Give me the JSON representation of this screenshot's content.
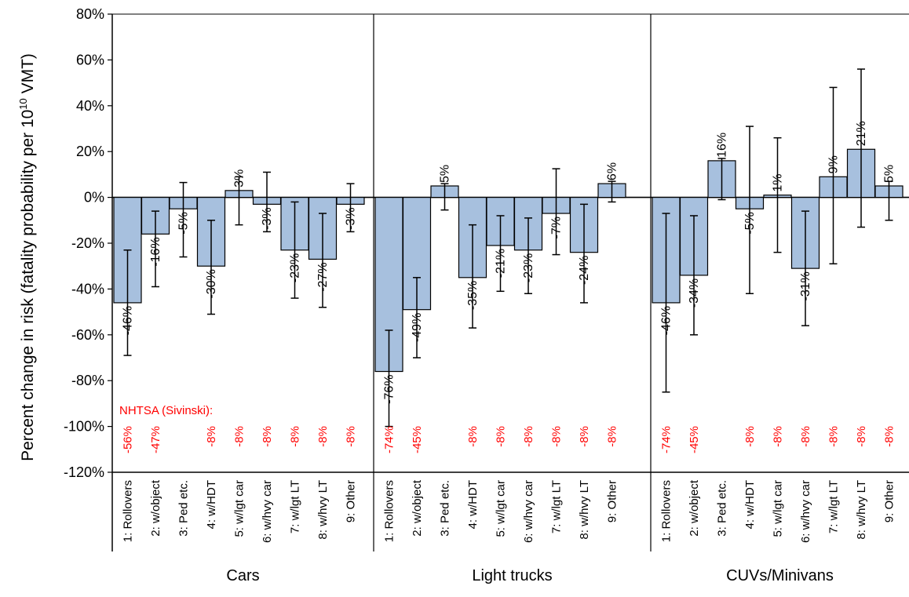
{
  "chart_data": {
    "type": "bar",
    "ylabel": "Percent change in risk (fatality probability per 10",
    "ylabel_sup": "10",
    "ylabel_tail": " VMT)",
    "ylim": [
      -120,
      80
    ],
    "yticks": [
      80,
      60,
      40,
      20,
      0,
      -20,
      -40,
      -60,
      -80,
      -100,
      -120
    ],
    "ytick_labels": [
      "80%",
      "60%",
      "40%",
      "20%",
      "0%",
      "-20%",
      "-40%",
      "-60%",
      "-80%",
      "-100%",
      "-120%"
    ],
    "categories": [
      "1: Rollovers",
      "2: w/object",
      "3: Ped etc.",
      "4: w/HDT",
      "5: w/lgt car",
      "6: w/hvy car",
      "7: w/lgt LT",
      "8: w/hvy LT",
      "9: Other"
    ],
    "bar_color": "#a7c0de",
    "nhtsa_label": "NHTSA (Sivinski):",
    "nhtsa_color": "#ff0000",
    "groups": [
      {
        "name": "Cars",
        "values": [
          -46,
          -16,
          -5,
          -30,
          3,
          -3,
          -23,
          -27,
          -3
        ],
        "value_labels": [
          "-46%",
          "-16%",
          "-5%",
          "-30%",
          "3%",
          "-3%",
          "-23%",
          "-27%",
          "-3%"
        ],
        "err_low": [
          -69,
          -39,
          -26,
          -51,
          -12,
          -15,
          -44,
          -48,
          -15
        ],
        "err_high": [
          -23,
          -6,
          6.5,
          -10,
          9,
          11,
          -2,
          -7,
          6
        ],
        "nhtsa": [
          "-56%",
          "-47%",
          "",
          "-8%",
          "-8%",
          "-8%",
          "-8%",
          "-8%",
          "-8%"
        ]
      },
      {
        "name": "Light trucks",
        "values": [
          -76,
          -49,
          5,
          -35,
          -21,
          -23,
          -7,
          -24,
          6
        ],
        "value_labels": [
          "-76%",
          "-49%",
          "5%",
          "-35%",
          "-21%",
          "-23%",
          "-7%",
          "-24%",
          "6%"
        ],
        "err_low": [
          -100,
          -70,
          -5.5,
          -57,
          -41,
          -42,
          -25,
          -46,
          -2
        ],
        "err_high": [
          -58,
          -35,
          6,
          -12,
          -8,
          -9,
          12.5,
          -3,
          7
        ],
        "nhtsa": [
          "-74%",
          "-45%",
          "",
          "-8%",
          "-8%",
          "-8%",
          "-8%",
          "-8%",
          "-8%"
        ]
      },
      {
        "name": "CUVs/Minivans",
        "values": [
          -46,
          -34,
          16,
          -5,
          1,
          -31,
          9,
          21,
          5
        ],
        "value_labels": [
          "-46%",
          "-34%",
          "16%",
          "-5%",
          "1%",
          "-31%",
          "9%",
          "21%",
          "5%"
        ],
        "err_low": [
          -85,
          -60,
          -1,
          -42,
          -24,
          -56,
          -29,
          -13,
          -10
        ],
        "err_high": [
          -7,
          -8,
          17,
          31,
          26,
          -6,
          48,
          56,
          7
        ],
        "nhtsa": [
          "-74%",
          "-45%",
          "",
          "-8%",
          "-8%",
          "-8%",
          "-8%",
          "-8%",
          "-8%"
        ]
      }
    ]
  }
}
